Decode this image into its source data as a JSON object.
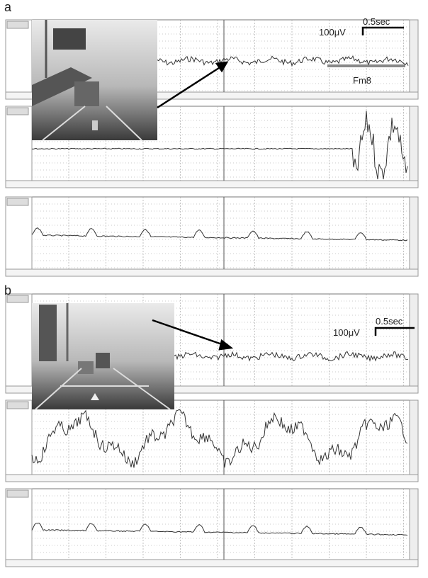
{
  "panels": [
    {
      "label": "a",
      "scale": {
        "time": "0.5sec",
        "amplitude": "100μV"
      },
      "annotation": "Fm8"
    },
    {
      "label": "b",
      "scale": {
        "time": "0.5sec",
        "amplitude": "100μV"
      }
    }
  ]
}
